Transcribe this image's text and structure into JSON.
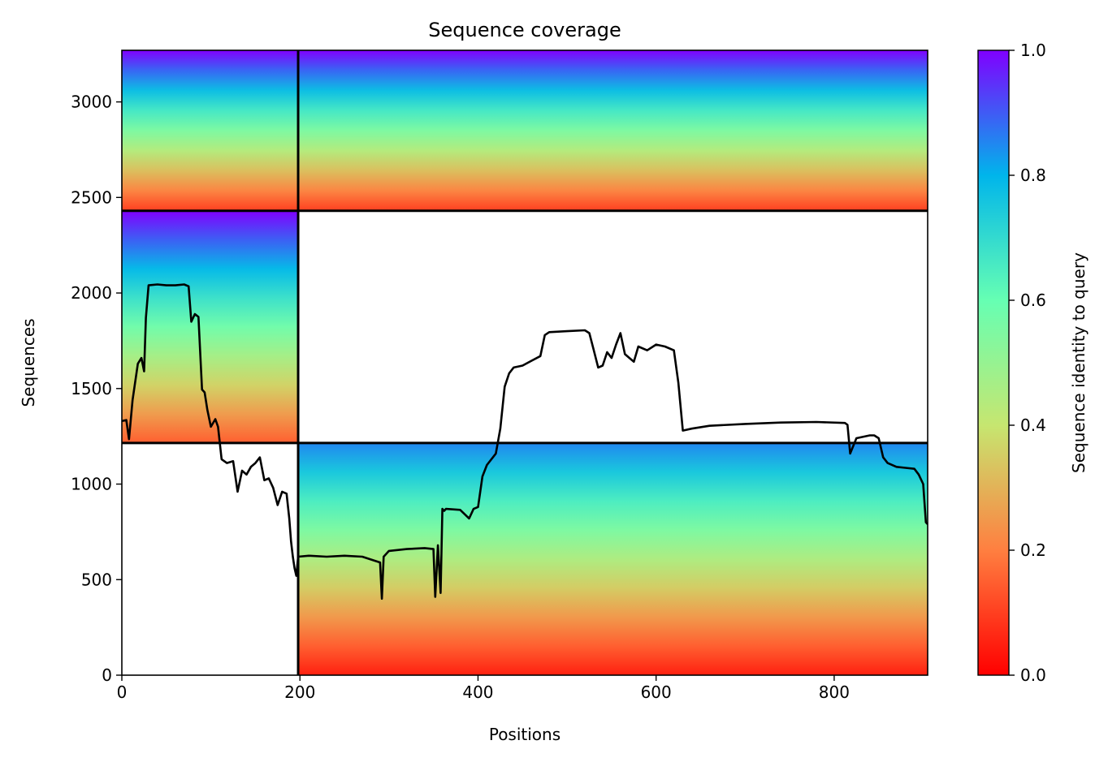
{
  "chart_data": {
    "type": "heatmap",
    "title": "Sequence coverage",
    "xlabel": "Positions",
    "ylabel": "Sequences",
    "xlim": [
      0,
      905
    ],
    "ylim": [
      0,
      3270
    ],
    "x_ticks": [
      0,
      200,
      400,
      600,
      800
    ],
    "y_ticks": [
      0,
      500,
      1000,
      1500,
      2000,
      2500,
      3000
    ],
    "colorbar": {
      "label": "Sequence identity to query",
      "colormap": "rainbow",
      "range": [
        0,
        1
      ],
      "ticks": [
        "0.0",
        "0.2",
        "0.4",
        "0.6",
        "0.8",
        "1.0"
      ],
      "colors": [
        "#ff0000",
        "#ff7f40",
        "#c6e670",
        "#66ffb3",
        "#00b5eb",
        "#8000ff"
      ]
    },
    "chain_boundaries": {
      "x": [
        198
      ],
      "y": [
        1215,
        2430
      ]
    },
    "coverage_blocks": [
      {
        "x0": 0,
        "x1": 198,
        "y0": 2430,
        "y1": 3270,
        "identity_top": 1.0,
        "identity_bottom": 0.1
      },
      {
        "x0": 198,
        "x1": 905,
        "y0": 2430,
        "y1": 3270,
        "identity_top": 1.0,
        "identity_bottom": 0.1
      },
      {
        "x0": 0,
        "x1": 198,
        "y0": 1215,
        "y1": 2430,
        "identity_top": 1.0,
        "identity_bottom": 0.15
      },
      {
        "x0": 198,
        "x1": 905,
        "y0": 0,
        "y1": 1215,
        "identity_top": 0.85,
        "identity_bottom": 0.05
      }
    ],
    "coverage_line": {
      "color": "#000000",
      "x": [
        0,
        5,
        8,
        12,
        18,
        22,
        25,
        27,
        30,
        40,
        50,
        60,
        70,
        75,
        78,
        82,
        86,
        90,
        93,
        96,
        100,
        105,
        108,
        112,
        118,
        125,
        130,
        135,
        140,
        145,
        150,
        155,
        160,
        165,
        170,
        175,
        180,
        185,
        188,
        190,
        192,
        194,
        196,
        198,
        210,
        230,
        250,
        270,
        290,
        292,
        294,
        300,
        320,
        340,
        350,
        352,
        355,
        358,
        360,
        362,
        364,
        380,
        390,
        395,
        400,
        405,
        410,
        420,
        425,
        430,
        435,
        440,
        450,
        460,
        470,
        475,
        480,
        500,
        520,
        525,
        530,
        535,
        540,
        545,
        550,
        555,
        560,
        565,
        570,
        575,
        580,
        590,
        600,
        610,
        620,
        625,
        630,
        640,
        660,
        700,
        740,
        780,
        812,
        815,
        818,
        825,
        840,
        845,
        850,
        855,
        860,
        870,
        880,
        890,
        895,
        900,
        903,
        905
      ],
      "y": [
        1330,
        1335,
        1235,
        1440,
        1630,
        1660,
        1590,
        1870,
        2040,
        2045,
        2040,
        2040,
        2045,
        2035,
        1850,
        1890,
        1875,
        1495,
        1480,
        1390,
        1300,
        1340,
        1300,
        1130,
        1110,
        1120,
        960,
        1070,
        1050,
        1090,
        1110,
        1140,
        1020,
        1030,
        980,
        890,
        960,
        950,
        820,
        700,
        620,
        560,
        520,
        620,
        625,
        620,
        625,
        620,
        590,
        400,
        620,
        650,
        660,
        665,
        660,
        410,
        680,
        430,
        870,
        860,
        870,
        865,
        820,
        870,
        880,
        1040,
        1100,
        1160,
        1290,
        1510,
        1580,
        1610,
        1620,
        1645,
        1670,
        1780,
        1795,
        1800,
        1805,
        1790,
        1700,
        1610,
        1620,
        1690,
        1660,
        1730,
        1790,
        1680,
        1660,
        1640,
        1720,
        1700,
        1730,
        1720,
        1700,
        1530,
        1280,
        1290,
        1305,
        1315,
        1322,
        1325,
        1320,
        1310,
        1160,
        1240,
        1255,
        1255,
        1240,
        1140,
        1110,
        1090,
        1085,
        1080,
        1050,
        1000,
        800,
        790
      ]
    }
  }
}
